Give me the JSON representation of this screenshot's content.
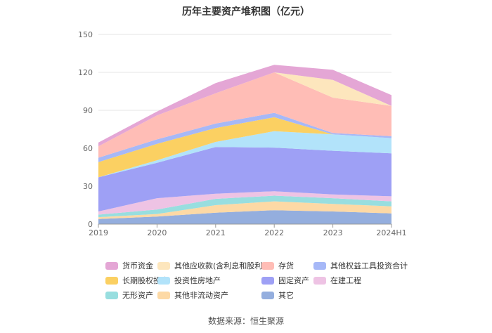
{
  "chart_data": {
    "type": "area",
    "stacked": true,
    "title": "历年主要资产堆积图（亿元）",
    "x": [
      "2019",
      "2020",
      "2021",
      "2022",
      "2023",
      "2024H1"
    ],
    "ylim": [
      0,
      150
    ],
    "yticks": [
      0,
      30,
      60,
      90,
      120,
      150
    ],
    "grid": true,
    "legend_position": "bottom",
    "series": [
      {
        "name": "其它",
        "color": "#94aede",
        "values": [
          4,
          6,
          9,
          11,
          10,
          8.5
        ]
      },
      {
        "name": "其他非流动资产",
        "color": "#fdd9a5",
        "values": [
          1.5,
          2,
          6,
          7,
          6,
          5.5
        ]
      },
      {
        "name": "无形资产",
        "color": "#98dedf",
        "values": [
          2,
          3.5,
          5,
          4.5,
          4.5,
          4
        ]
      },
      {
        "name": "在建工程",
        "color": "#eec3e4",
        "values": [
          2.5,
          9,
          4,
          3.5,
          3,
          4
        ]
      },
      {
        "name": "固定资产",
        "color": "#9ea0f5",
        "values": [
          27,
          28,
          37,
          34.5,
          34.5,
          34
        ]
      },
      {
        "name": "投资性房地产",
        "color": "#b2e3fa",
        "values": [
          0,
          2,
          4,
          13,
          13,
          12
        ]
      },
      {
        "name": "长期股权投资",
        "color": "#fbd062",
        "values": [
          12,
          13,
          11,
          11,
          0,
          0
        ]
      },
      {
        "name": "其他权益工具投资合计",
        "color": "#a6b8f7",
        "values": [
          3.5,
          3.5,
          3.5,
          3.5,
          1,
          1.5
        ]
      },
      {
        "name": "存货",
        "color": "#ffbdb6",
        "values": [
          9,
          19,
          24,
          32,
          28,
          24
        ]
      },
      {
        "name": "其他应收款(含利息和股利)",
        "color": "#fde6bd",
        "values": [
          0,
          0,
          0,
          0,
          14,
          0
        ]
      },
      {
        "name": "货币资金",
        "color": "#e4a6d5",
        "values": [
          3,
          3,
          8,
          6,
          8,
          8.5
        ]
      }
    ],
    "legend_order": [
      "货币资金",
      "其他应收款(含利息和股利)",
      "存货",
      "其他权益工具投资合计",
      "长期股权投资",
      "投资性房地产",
      "固定资产",
      "在建工程",
      "无形资产",
      "其他非流动资产",
      "其它"
    ]
  },
  "source_label": "数据来源：恒生聚源"
}
